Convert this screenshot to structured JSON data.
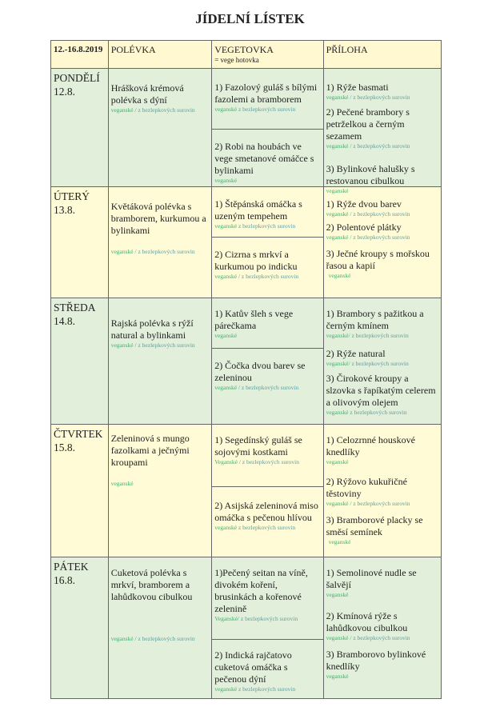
{
  "title": "JÍDELNÍ LÍSTEK",
  "colors": {
    "header": "#fff8d0",
    "green_row": "#e2efda",
    "yellow_row": "#fffbd6",
    "vegan_tag": "#3cb371",
    "gluten_free_tag": "#5f9ea0"
  },
  "header": {
    "date_range": "12.-16.8.2019",
    "soup": "POLÉVKA",
    "vege": "VEGETOVKA",
    "vege_note": "=   vege hotovka",
    "side": "PŘÍLOHA"
  },
  "days": [
    {
      "day": "PONDĚLÍ",
      "date": "12.8.",
      "color": "green",
      "soup": {
        "text": "Hrášková krémová polévka s dýní",
        "t1": "veganské",
        "t2": " / z bezlepkových surovin"
      },
      "vege": [
        {
          "text": "1) Fazolový guláš s bílými fazolemi a bramborem",
          "t1": "veganské",
          "t2": " z bezlepkových surovin"
        },
        {
          "text": "2) Robi na houbách ve vege smetanové omáčce s bylinkami",
          "t1": "veganské",
          "t2": ""
        }
      ],
      "side": [
        {
          "text": "1) Rýže basmati",
          "t1": "veganské",
          "t2": " / z bezlepkových surovin"
        },
        {
          "text": "2) Pečené brambory s petrželkou a černým sezamem",
          "t1": "veganské",
          "t2": "  / z bezlepkových surovin"
        },
        {
          "text": "3) Bylinkové halušky s restovanou cibulkou",
          "t1": "veganské",
          "t2": ""
        }
      ]
    },
    {
      "day": "ÚTERÝ",
      "date": "13.8.",
      "color": "yellow",
      "soup": {
        "text": "Květáková polévka s bramborem, kurkumou a bylinkami",
        "t1": "veganské",
        "t2": " / z bezlepkových surovin"
      },
      "vege": [
        {
          "text": "1) Štěpánská omáčka s uzeným tempehem",
          "t1": "veganské",
          "t2": " z bezlepkových surovin"
        },
        {
          "text": "2) Cizrna s mrkví a kurkumou po indicku",
          "t1": "veganské",
          "t2": " / z bezlepkových surovin"
        }
      ],
      "side": [
        {
          "text": "1) Rýže dvou barev",
          "t1": "veganské",
          "t2": " /  z bezlepkových surovin"
        },
        {
          "text": "2) Polentové plátky",
          "t1": "veganské",
          "t2": "  / z bezlepkových surovin"
        },
        {
          "text": "3) Ječné kroupy s mořskou řasou a kapií",
          "t1": "veganské",
          "t2": ""
        }
      ]
    },
    {
      "day": "STŘEDA",
      "date": "14.8.",
      "color": "green",
      "soup": {
        "text": "Rajská polévka s rýží natural a bylinkami",
        "t1": "veganské",
        "t2": " / z bezlepkových surovin"
      },
      "vege": [
        {
          "text": "1) Katův šleh s vege párečkama",
          "t1": "veganské",
          "t2": ""
        },
        {
          "text": "2) Čočka dvou barev se zeleninou",
          "t1": "veganské",
          "t2": " / z bezlepkových surovin"
        }
      ],
      "side": [
        {
          "text": "1) Brambory s pažitkou a černým kmínem",
          "t1": "veganské/",
          "t2": " z bezlepkových surovin"
        },
        {
          "text": "2) Rýže natural",
          "t1": "veganské/",
          "t2": " z bezlepkových surovin"
        },
        {
          "text": "3) Čirokové kroupy a slzovka s řapíkatým celerem a olivovým olejem",
          "t1": "veganské",
          "t2": "  z bezlepkových surovin"
        }
      ]
    },
    {
      "day": "ČTVRTEK",
      "date": "15.8.",
      "color": "yellow",
      "soup": {
        "text": "Zeleninová s mungo fazolkami a ječnými kroupami",
        "t1": "veganské",
        "t2": ""
      },
      "vege": [
        {
          "text": "1) Segedínský guláš se sojovými kostkami",
          "t1": "Veganské",
          "t2": " / z bezlepkových surovin"
        },
        {
          "text": "2) Asijská zeleninová miso omáčka s pečenou hlívou",
          "t1": "veganské",
          "t2": " z bezlepkových surovin"
        }
      ],
      "side": [
        {
          "text": "1) Celozrnné houskové knedlíky",
          "t1": "veganské",
          "t2": ""
        },
        {
          "text": "2) Rýžovo kukuřičné těstoviny",
          "t1": "veganské",
          "t2": "  / z bezlepkových surovin"
        },
        {
          "text": "3) Bramborové placky se směsí semínek",
          "t1": "veganské",
          "t2": ""
        }
      ]
    },
    {
      "day": "PÁTEK",
      "date": "16.8.",
      "color": "green",
      "soup": {
        "text": "Cuketová polévka s mrkví, bramborem a lahůdkovou cibulkou",
        "t1": "veganské",
        "t2": " / z bezlepkových surovin"
      },
      "vege": [
        {
          "text": "1)Pečený seitan na víně, divokém koření, brusinkách a kořenové zelenině",
          "t1": "Veganské/",
          "t2": " z bezlepkových surovin"
        },
        {
          "text": "2) Indická rajčatovo cuketová omáčka s pečenou dýní",
          "t1": "veganské",
          "t2": " z bezlepkových surovin"
        }
      ],
      "side": [
        {
          "text": "1) Semolinové nudle se šalvějí",
          "t1": "veganské",
          "t2": ""
        },
        {
          "text": "2) Kmínová rýže s lahůdkovou cibulkou",
          "t1": "veganské",
          "t2": "  / z bezlepkových surovin"
        },
        {
          "text": "3) Bramborovo bylinkové knedlíky",
          "t1": "veganské",
          "t2": ""
        }
      ]
    }
  ]
}
